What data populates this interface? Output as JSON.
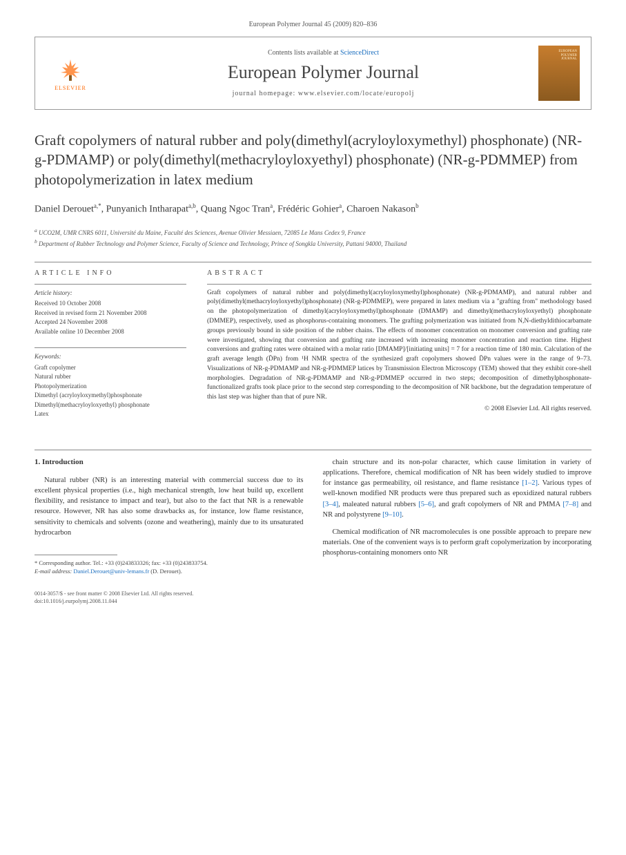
{
  "page_header": "European Polymer Journal 45 (2009) 820–836",
  "masthead": {
    "contents_prefix": "Contents lists available at ",
    "contents_link": "ScienceDirect",
    "journal_name": "European Polymer Journal",
    "homepage": "journal homepage: www.elsevier.com/locate/europolj",
    "publisher": "ELSEVIER",
    "cover_label_top": "EUROPEAN",
    "cover_label_mid": "POLYMER",
    "cover_label_bot": "JOURNAL"
  },
  "title": "Graft copolymers of natural rubber and poly(dimethyl(acryloyloxymethyl) phosphonate) (NR-g-PDMAMP) or poly(dimethyl(methacryloyloxyethyl) phosphonate) (NR-g-PDMMEP) from photopolymerization in latex medium",
  "authors_html": "Daniel Derouet<sup>a,*</sup>, Punyanich Intharapat<sup>a,b</sup>, Quang Ngoc Tran<sup>a</sup>, Frédéric Gohier<sup>a</sup>, Charoen Nakason<sup>b</sup>",
  "affiliations": {
    "a": "UCO2M, UMR CNRS 6011, Université du Maine, Faculté des Sciences, Avenue Olivier Messiaen, 72085 Le Mans Cedex 9, France",
    "b": "Department of Rubber Technology and Polymer Science, Faculty of Science and Technology, Prince of Songkla University, Pattani 94000, Thailand"
  },
  "labels": {
    "article_info": "ARTICLE INFO",
    "abstract": "ABSTRACT",
    "history": "Article history:",
    "keywords": "Keywords:"
  },
  "history": {
    "received": "Received 10 October 2008",
    "revised": "Received in revised form 21 November 2008",
    "accepted": "Accepted 24 November 2008",
    "online": "Available online 10 December 2008"
  },
  "keywords": [
    "Graft copolymer",
    "Natural rubber",
    "Photopolymerization",
    "Dimethyl (acryloyloxymethyl)phosphonate",
    "Dimethyl(methacryloyloxyethyl) phosphonate",
    "Latex"
  ],
  "abstract": "Graft copolymers of natural rubber and poly(dimethyl(acryloyloxymethyl)phosphonate) (NR-g-PDMAMP), and natural rubber and poly(dimethyl(methacryloyloxyethyl)phosphonate) (NR-g-PDMMEP), were prepared in latex medium via a \"grafting from\" methodology based on the photopolymerization of dimethyl(acryloyloxymethyl)phosphonate (DMAMP) and dimethyl(methacryloyloxyethyl) phosphonate (DMMEP), respectively, used as phosphorus-containing monomers. The grafting polymerization was initiated from N,N-diethyldithiocarbamate groups previously bound in side position of the rubber chains. The effects of monomer concentration on monomer conversion and grafting rate were investigated, showing that conversion and grafting rate increased with increasing monomer concentration and reaction time. Highest conversions and grafting rates were obtained with a molar ratio [DMAMP]/[initiating units] = 7 for a reaction time of 180 min. Calculation of the graft average length (D̄Pn) from ¹H NMR spectra of the synthesized graft copolymers showed D̄Pn values were in the range of 9–73. Visualizations of NR-g-PDMAMP and NR-g-PDMMEP latices by Transmission Electron Microscopy (TEM) showed that they exhibit core-shell morphologies. Degradation of NR-g-PDMAMP and NR-g-PDMMEP occurred in two steps; decomposition of dimethylphosphonate-functionalized grafts took place prior to the second step corresponding to the decomposition of NR backbone, but the degradation temperature of this last step was higher than that of pure NR.",
  "copyright": "© 2008 Elsevier Ltd. All rights reserved.",
  "section_heading": "1. Introduction",
  "body": {
    "p1": "Natural rubber (NR) is an interesting material with commercial success due to its excellent physical properties (i.e., high mechanical strength, low heat build up, excellent flexibility, and resistance to impact and tear), but also to the fact that NR is a renewable resource. However, NR has also some drawbacks as, for instance, low flame resistance, sensitivity to chemicals and solvents (ozone and weathering), mainly due to its unsaturated hydrocarbon",
    "p2_pre": "chain structure and its non-polar character, which cause limitation in variety of applications. Therefore, chemical modification of NR has been widely studied to improve for instance gas permeability, oil resistance, and flame resistance ",
    "p2_r1": "[1–2]",
    "p2_mid1": ". Various types of well-known modified NR products were thus prepared such as epoxidized natural rubbers ",
    "p2_r2": "[3–4]",
    "p2_mid2": ", maleated natural rubbers ",
    "p2_r3": "[5–6]",
    "p2_mid3": ", and graft copolymers of NR and PMMA ",
    "p2_r4": "[7–8]",
    "p2_mid4": " and NR and polystyrene ",
    "p2_r5": "[9–10]",
    "p2_end": ".",
    "p3": "Chemical modification of NR macromolecules is one possible approach to prepare new materials. One of the convenient ways is to perform graft copolymerization by incorporating phosphorus-containing monomers onto NR"
  },
  "footnote": {
    "corr": "* Corresponding author. Tel.: +33 (0)243833326; fax: +33 (0)243833754.",
    "email_label": "E-mail address:",
    "email": "Daniel.Derouet@univ-lemans.fr",
    "email_paren": "(D. Derouet)."
  },
  "bottom": {
    "line1": "0014-3057/$ - see front matter © 2008 Elsevier Ltd. All rights reserved.",
    "line2": "doi:10.1016/j.eurpolymj.2008.11.044"
  },
  "colors": {
    "link": "#1a6ebf",
    "text": "#333333",
    "rule": "#888888",
    "elsevier_orange": "#ff6600"
  }
}
